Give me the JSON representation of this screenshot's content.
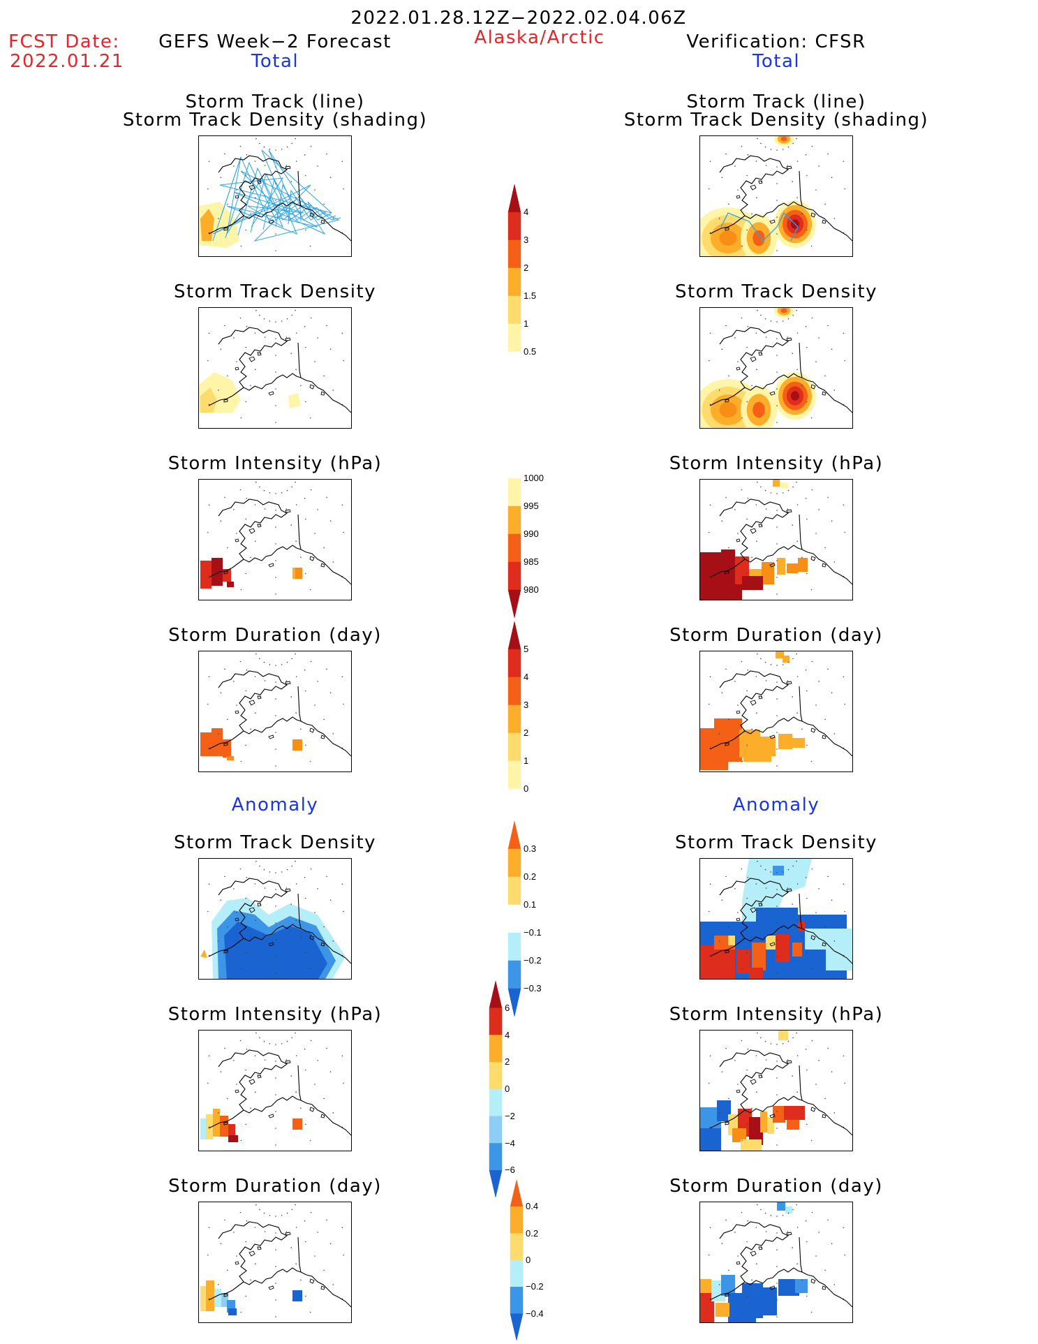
{
  "header": {
    "period": "2022.01.28.12Z−2022.02.04.06Z",
    "fcst_label": "FCST Date:",
    "fcst_date": "2022.01.21",
    "left_title": "GEFS Week−2 Forecast",
    "region": "Alaska/Arctic",
    "right_title": "Verification: CFSR"
  },
  "sections": {
    "total": "Total",
    "anomaly": "Anomaly"
  },
  "panel_titles": {
    "track_line": "Storm Track (line)",
    "track_shading": "Storm Track Density (shading)",
    "density": "Storm Track Density",
    "intensity": "Storm Intensity (hPa)",
    "duration": "Storm Duration (day)"
  },
  "colorbars": {
    "density_total": [
      "4",
      "3",
      "2",
      "1.5",
      "1",
      "0.5"
    ],
    "intensity_total": [
      "1000",
      "995",
      "990",
      "985",
      "980"
    ],
    "duration_total": [
      "5",
      "4",
      "3",
      "2",
      "1",
      "0"
    ],
    "density_anom": [
      "0.3",
      "0.2",
      "0.1",
      "−0.1",
      "−0.2",
      "−0.3"
    ],
    "intensity_anom": [
      "6",
      "4",
      "2",
      "0",
      "−2",
      "−4",
      "−6"
    ],
    "duration_anom": [
      "0.4",
      "0.2",
      "0",
      "−0.2",
      "−0.4"
    ]
  },
  "colors": {
    "yellow_light": "#fff5a8",
    "yellow": "#fddb6d",
    "orange_light": "#fcae2a",
    "orange": "#f88e16",
    "orange_red": "#f36016",
    "red": "#de2d1c",
    "dark_red": "#a50f15",
    "blue_light": "#b4eef8",
    "blue_mid": "#8ecdf5",
    "blue": "#3d95e8",
    "blue_dark": "#1a64d2",
    "track_blue": "#2ca4e8"
  }
}
